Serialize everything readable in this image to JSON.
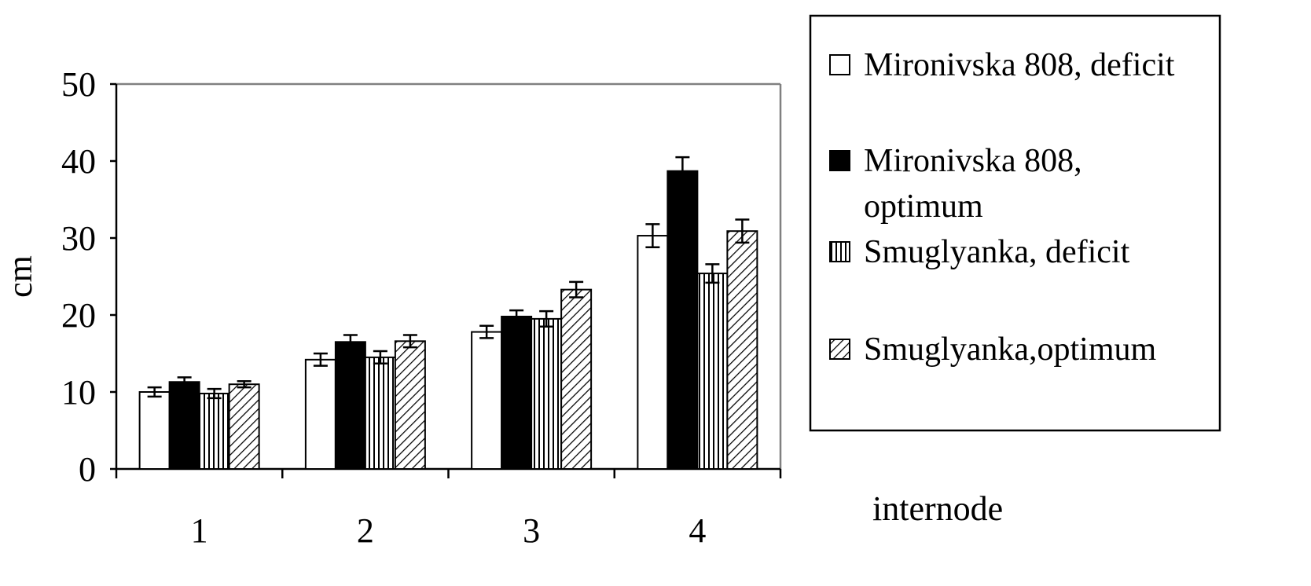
{
  "chart_data": {
    "type": "bar",
    "title": "",
    "xlabel": "internode",
    "ylabel": "cm",
    "categories": [
      "1",
      "2",
      "3",
      "4"
    ],
    "ylim": [
      0,
      50
    ],
    "yticks": [
      "0",
      "10",
      "20",
      "30",
      "40",
      "50"
    ],
    "grid": false,
    "legend_position": "right",
    "series": [
      {
        "name": "Mironivska 808, deficit",
        "name_lines": [
          "Mironivska 808, deficit"
        ],
        "fill": "white",
        "values": [
          10.0,
          14.2,
          17.8,
          30.3
        ],
        "errors": [
          0.6,
          0.8,
          0.8,
          1.5
        ]
      },
      {
        "name": "Mironivska 808, optimum",
        "name_lines": [
          "Mironivska 808,",
          "optimum"
        ],
        "fill": "solid-black",
        "values": [
          11.3,
          16.5,
          19.8,
          38.7
        ],
        "errors": [
          0.6,
          0.9,
          0.8,
          1.8
        ]
      },
      {
        "name": "Smuglyanka, deficit",
        "name_lines": [
          "Smuglyanka, deficit"
        ],
        "fill": "vertical-lines",
        "values": [
          9.8,
          14.5,
          19.5,
          25.4
        ],
        "errors": [
          0.6,
          0.8,
          1.0,
          1.2
        ]
      },
      {
        "name": "Smuglyanka,optimum",
        "name_lines": [
          "Smuglyanka,optimum"
        ],
        "fill": "diagonal-lines",
        "values": [
          11.0,
          16.6,
          23.3,
          30.9
        ],
        "errors": [
          0.4,
          0.8,
          1.0,
          1.5
        ]
      }
    ]
  }
}
